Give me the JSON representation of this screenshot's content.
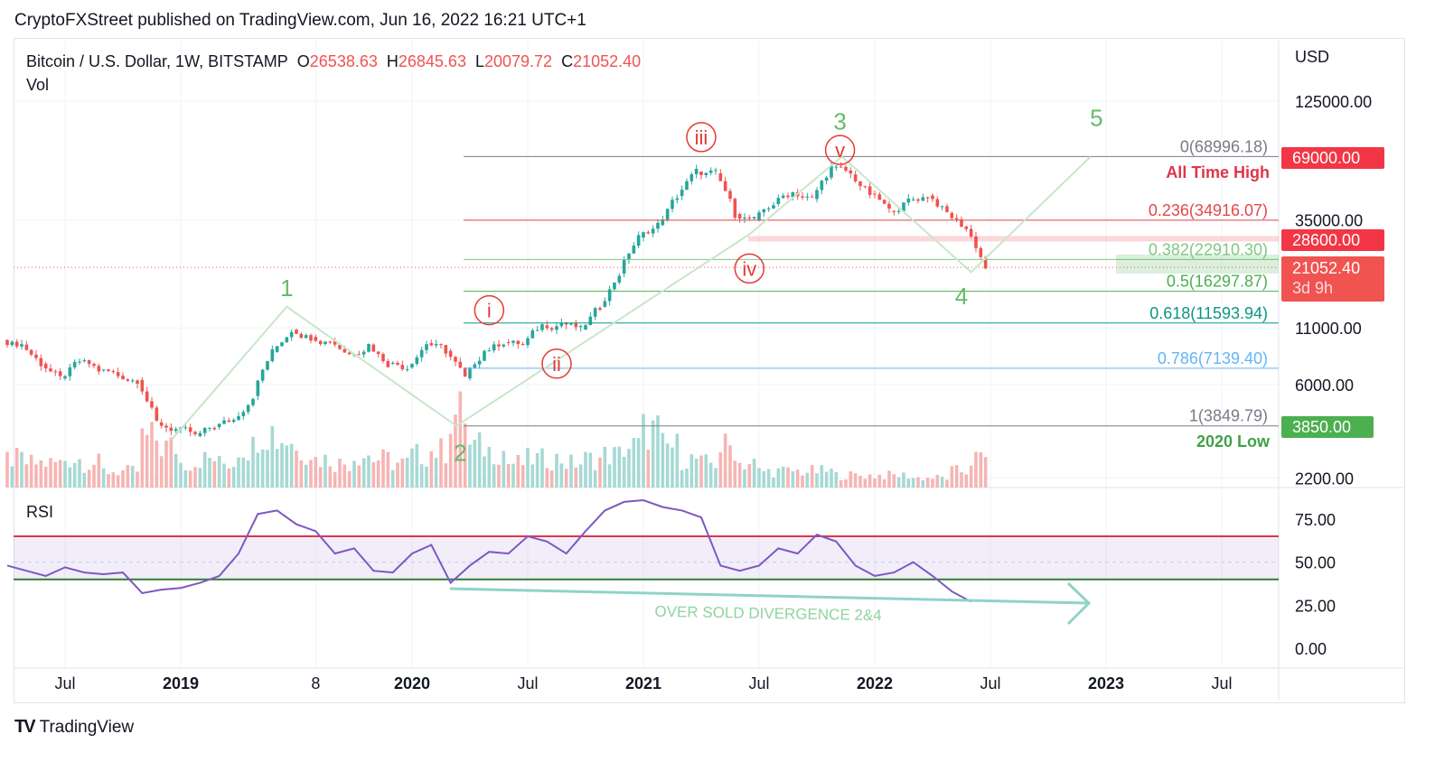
{
  "publisher": "CryptoFXStreet published on TradingView.com, Jun 16, 2022 16:21 UTC+1",
  "legend": {
    "symbol": "Bitcoin / U.S. Dollar, 1W, BITSTAMP",
    "o_label": "O",
    "o": "26538.63",
    "h_label": "H",
    "h": "26845.63",
    "l_label": "L",
    "l": "20079.72",
    "c_label": "C",
    "c": "21052.40",
    "vol": "Vol"
  },
  "brand": "TradingView",
  "badges": {
    "ath": "69000.00",
    "res": "28600.00",
    "last": "21052.40",
    "countdown": "3d 9h",
    "low": "3850.00"
  },
  "chart_data": {
    "type": "candlestick",
    "title": "Bitcoin / U.S. Dollar, 1W, BITSTAMP",
    "currency": "USD",
    "y_scale": "log",
    "price_ticks": [
      "125000.00",
      "35000.00",
      "11000.00",
      "6000.00",
      "2200.00"
    ],
    "price_tick_values": [
      125000,
      35000,
      11000,
      6000,
      2200
    ],
    "x_ticks": [
      {
        "label": "Jul",
        "m": 3,
        "bold": false
      },
      {
        "label": "2019",
        "m": 9,
        "bold": true
      },
      {
        "label": "8",
        "m": 16,
        "bold": false
      },
      {
        "label": "2020",
        "m": 21,
        "bold": true
      },
      {
        "label": "Jul",
        "m": 27,
        "bold": false
      },
      {
        "label": "2021",
        "m": 33,
        "bold": true
      },
      {
        "label": "Jul",
        "m": 39,
        "bold": false
      },
      {
        "label": "2022",
        "m": 45,
        "bold": true
      },
      {
        "label": "Jul",
        "m": 51,
        "bold": false
      },
      {
        "label": "2023",
        "m": 57,
        "bold": true
      },
      {
        "label": "Jul",
        "m": 63,
        "bold": false
      }
    ],
    "start_month": "2018-04",
    "monthly_close": [
      9200,
      7500,
      6400,
      7700,
      7000,
      6600,
      6300,
      4000,
      3700,
      3450,
      3800,
      4100,
      5300,
      8500,
      10800,
      10000,
      9600,
      8300,
      9200,
      7500,
      7200,
      9350,
      8600,
      6400,
      8600,
      9450,
      9150,
      11300,
      11650,
      10800,
      13800,
      19700,
      29000,
      33100,
      45200,
      58800,
      57700,
      37300,
      35000,
      41500,
      47100,
      43800,
      61300,
      57000,
      46300,
      38500,
      43200,
      45500,
      37700,
      31800,
      21052
    ],
    "monthly_volume_rel": [
      0.35,
      0.3,
      0.3,
      0.35,
      0.3,
      0.2,
      0.2,
      0.6,
      0.5,
      0.3,
      0.35,
      0.3,
      0.5,
      0.7,
      0.6,
      0.45,
      0.35,
      0.3,
      0.4,
      0.35,
      0.3,
      0.4,
      0.45,
      0.9,
      0.5,
      0.45,
      0.3,
      0.35,
      0.35,
      0.3,
      0.35,
      0.4,
      0.5,
      0.7,
      0.5,
      0.35,
      0.3,
      0.5,
      0.3,
      0.2,
      0.2,
      0.2,
      0.2,
      0.15,
      0.15,
      0.15,
      0.15,
      0.12,
      0.12,
      0.2,
      0.35
    ],
    "rsi": {
      "label": "RSI",
      "ticks": [
        "75.00",
        "50.00",
        "25.00",
        "0.00"
      ],
      "tick_values": [
        75,
        50,
        25,
        0
      ],
      "upper_band": 65,
      "lower_band": 40,
      "values": [
        48,
        45,
        42,
        47,
        44,
        43,
        44,
        32,
        34,
        35,
        38,
        42,
        55,
        78,
        80,
        72,
        68,
        55,
        58,
        45,
        44,
        55,
        60,
        38,
        48,
        56,
        55,
        65,
        62,
        55,
        68,
        80,
        85,
        86,
        82,
        80,
        76,
        48,
        45,
        48,
        58,
        55,
        66,
        62,
        48,
        42,
        44,
        50,
        42,
        33,
        27
      ]
    },
    "fib_levels": [
      {
        "label": "0(68996.18)",
        "price": 68996.18,
        "color": "#787b86"
      },
      {
        "label": "0.236(34916.07)",
        "price": 34916.07,
        "color": "#e04848"
      },
      {
        "label": "0.382(22910.30)",
        "price": 22910.3,
        "color": "#81c784"
      },
      {
        "label": "0.5(16297.87)",
        "price": 16297.87,
        "color": "#4caf50"
      },
      {
        "label": "0.618(11593.94)",
        "price": 11593.94,
        "color": "#089981"
      },
      {
        "label": "0.786(7139.40)",
        "price": 7139.4,
        "color": "#64b5f6"
      },
      {
        "label": "1(3849.79)",
        "price": 3849.79,
        "color": "#787b86"
      }
    ],
    "annotations": {
      "ath": "All Time High",
      "low2020": "2020 Low",
      "divergence": "OVER SOLD DIVERGENCE 2&4"
    },
    "waves": [
      {
        "label": "1",
        "m": 14.5,
        "p": 15500
      },
      {
        "label": "2",
        "m": 23.5,
        "p": 2650
      },
      {
        "label": "3",
        "m": 43.2,
        "p": 92000
      },
      {
        "label": "4",
        "m": 49.5,
        "p": 14200
      },
      {
        "label": "5",
        "m": 56.5,
        "p": 96000
      }
    ],
    "sub_waves": [
      {
        "label": "i",
        "m": 25,
        "p": 13300
      },
      {
        "label": "ii",
        "m": 28.5,
        "p": 7500
      },
      {
        "label": "iii",
        "m": 36,
        "p": 85000
      },
      {
        "label": "iv",
        "m": 38.5,
        "p": 20800
      },
      {
        "label": "v",
        "m": 43.2,
        "p": 74000
      }
    ],
    "wave_path": [
      [
        8.5,
        3300
      ],
      [
        14.5,
        13800
      ],
      [
        23.3,
        3850
      ],
      [
        38.5,
        30000
      ],
      [
        43.3,
        69000
      ],
      [
        50,
        20000
      ],
      [
        56.2,
        69000
      ]
    ]
  }
}
